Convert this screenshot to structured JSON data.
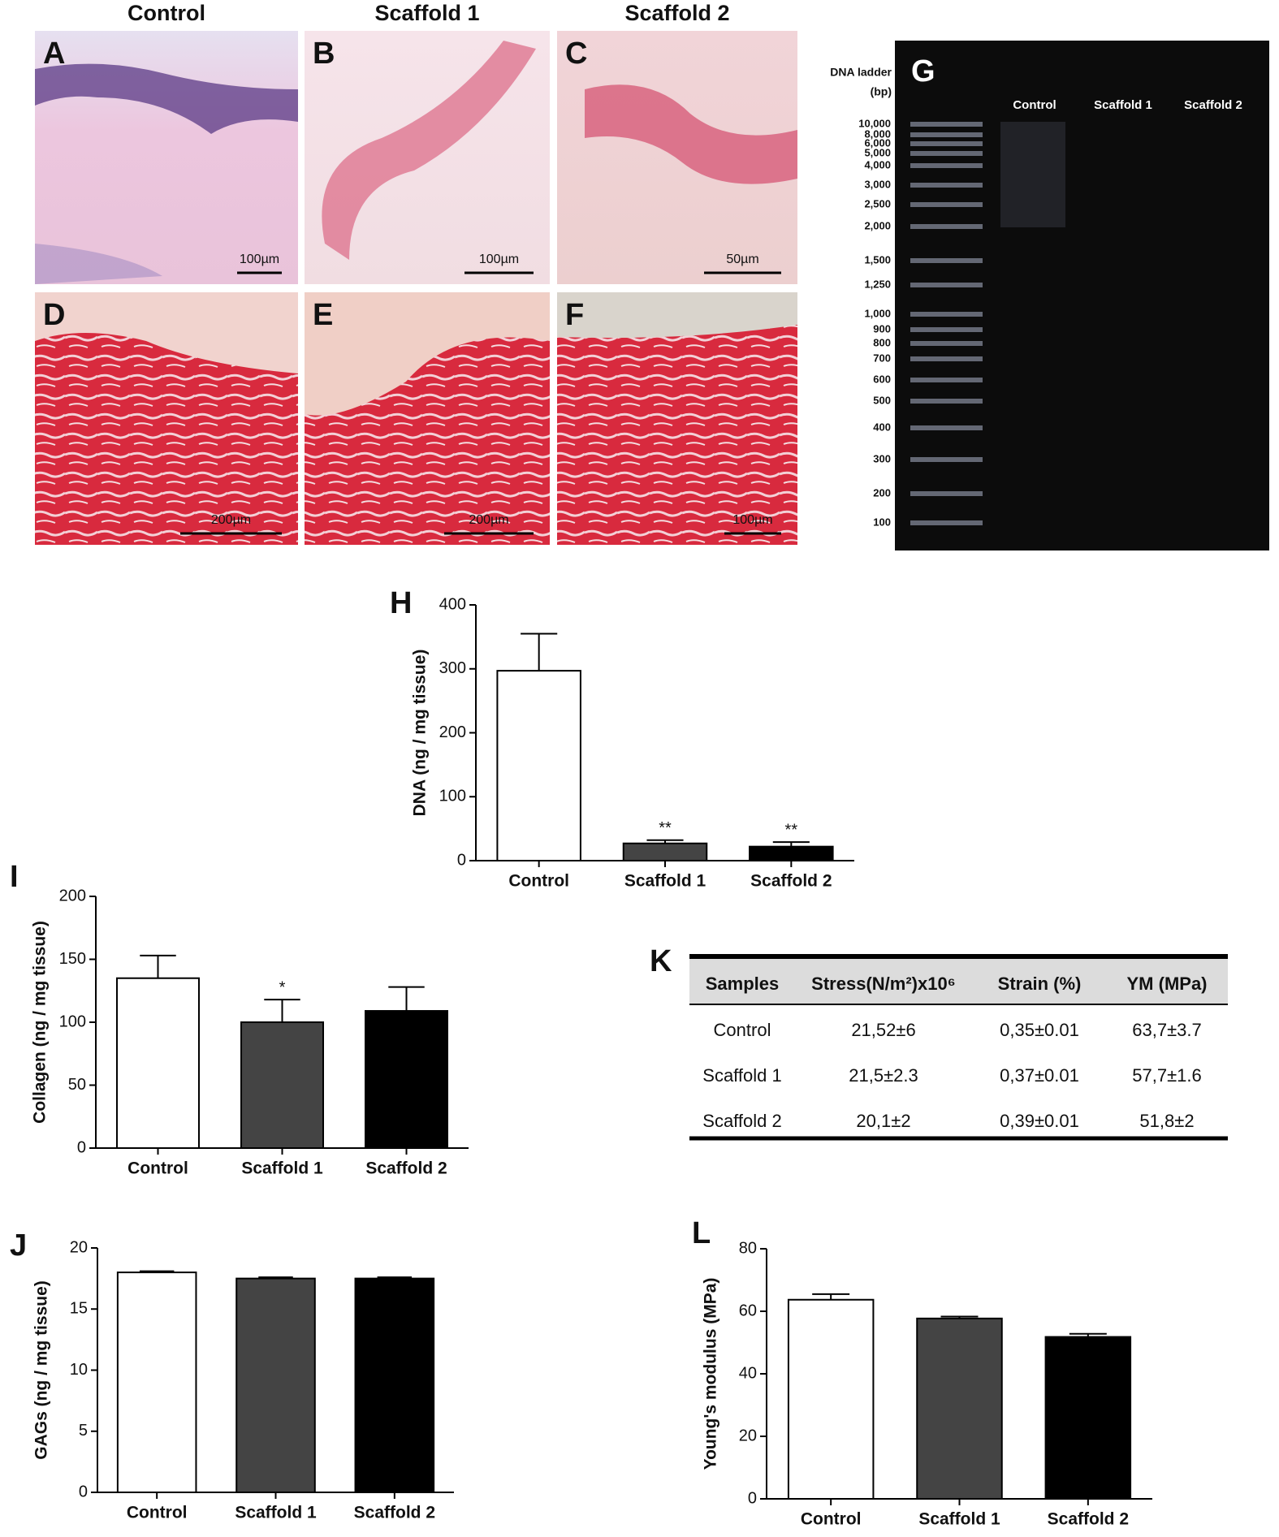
{
  "panels": {
    "columns": [
      "Control",
      "Scaffold 1",
      "Scaffold 2"
    ],
    "letters": [
      "A",
      "B",
      "C",
      "D",
      "E",
      "F"
    ],
    "scale_bars": [
      "100µm",
      "100µm",
      "50µm",
      "200µm",
      "200µm",
      "100µm"
    ]
  },
  "gel": {
    "letter": "G",
    "ladder_title": [
      "DNA ladder",
      "(bp)"
    ],
    "ladder": [
      "10,000",
      "8,000",
      "6,000",
      "5,000",
      "4,000",
      "3,000",
      "2,500",
      "2,000",
      "1,500",
      "1,250",
      "1,000",
      "900",
      "800",
      "700",
      "600",
      "500",
      "400",
      "300",
      "200",
      "100"
    ],
    "lanes": [
      "Control",
      "Scaffold 1",
      "Scaffold 2"
    ]
  },
  "chart_data": [
    {
      "type": "bar",
      "letter": "H",
      "ylabel": "DNA (ng / mg tissue)",
      "categories": [
        "Control",
        "Scaffold 1",
        "Scaffold 2"
      ],
      "values": [
        297,
        27,
        22
      ],
      "errors": [
        58,
        5,
        7
      ],
      "colors": [
        "#ffffff",
        "#444444",
        "#000000"
      ],
      "annotations": [
        null,
        "**",
        "**"
      ],
      "ylim": [
        0,
        400
      ],
      "yticks": [
        0,
        100,
        200,
        300,
        400
      ]
    },
    {
      "type": "bar",
      "letter": "I",
      "ylabel": "Collagen (ng / mg tissue)",
      "categories": [
        "Control",
        "Scaffold 1",
        "Scaffold 2"
      ],
      "values": [
        135,
        100,
        109
      ],
      "errors": [
        18,
        18,
        19
      ],
      "colors": [
        "#ffffff",
        "#444444",
        "#000000"
      ],
      "annotations": [
        null,
        "*",
        null
      ],
      "ylim": [
        0,
        200
      ],
      "yticks": [
        0,
        50,
        100,
        150,
        200
      ]
    },
    {
      "type": "bar",
      "letter": "J",
      "ylabel": "GAGs (ng / mg tissue)",
      "categories": [
        "Control",
        "Scaffold 1",
        "Scaffold 2"
      ],
      "values": [
        18,
        17.5,
        17.5
      ],
      "errors": [
        0.1,
        0.1,
        0.1
      ],
      "colors": [
        "#ffffff",
        "#444444",
        "#000000"
      ],
      "annotations": [
        null,
        null,
        null
      ],
      "ylim": [
        0,
        20
      ],
      "yticks": [
        0,
        5,
        10,
        15,
        20
      ]
    },
    {
      "type": "bar",
      "letter": "L",
      "ylabel": "Young's modulus (MPa)",
      "categories": [
        "Control",
        "Scaffold 1",
        "Scaffold 2"
      ],
      "values": [
        63.7,
        57.7,
        51.8
      ],
      "errors": [
        1.8,
        0.6,
        1
      ],
      "colors": [
        "#ffffff",
        "#444444",
        "#000000"
      ],
      "annotations": [
        null,
        null,
        null
      ],
      "ylim": [
        0,
        80
      ],
      "yticks": [
        0,
        20,
        40,
        60,
        80
      ]
    }
  ],
  "table": {
    "letter": "K",
    "header": [
      "Samples",
      "Stress(N/m²)x10⁶",
      "Strain (%)",
      "YM (MPa)"
    ],
    "rows": [
      [
        "Control",
        "21,52±6",
        "0,35±0.01",
        "63,7±3.7"
      ],
      [
        "Scaffold 1",
        "21,5±2.3",
        "0,37±0.01",
        "57,7±1.6"
      ],
      [
        "Scaffold 2",
        "20,1±2",
        "0,39±0.01",
        "51,8±2"
      ]
    ]
  }
}
